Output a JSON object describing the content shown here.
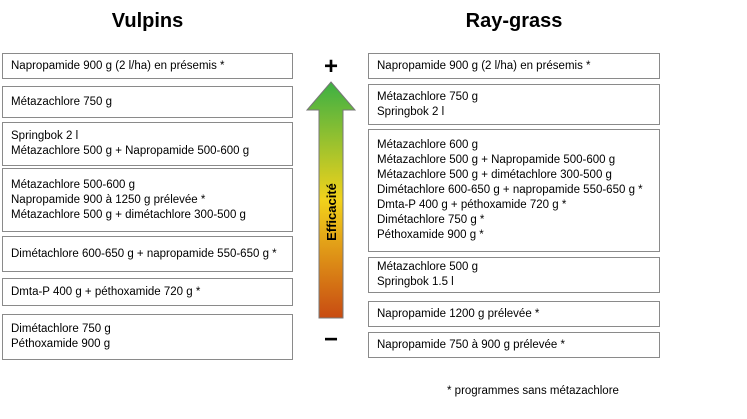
{
  "left": {
    "title": "Vulpins",
    "boxes": [
      [
        "Napropamide 900 g (2 l/ha) en présemis *"
      ],
      [
        "Métazachlore 750 g"
      ],
      [
        "Springbok 2 l",
        "Métazachlore 500 g + Napropamide 500-600 g"
      ],
      [
        "Métazachlore 500-600 g",
        "Napropamide 900 à 1250 g prélevée *",
        "Métazachlore 500 g + dimétachlore 300-500 g"
      ],
      [
        "Dimétachlore 600-650 g + napropamide 550-650 g *"
      ],
      [
        "Dmta-P 400 g + péthoxamide 720 g *"
      ],
      [
        "Dimétachlore 750 g",
        "Péthoxamide 900 g"
      ]
    ]
  },
  "right": {
    "title": "Ray-grass",
    "boxes": [
      [
        "Napropamide 900 g (2 l/ha) en présemis *"
      ],
      [
        "Métazachlore 750 g",
        "Springbok 2 l"
      ],
      [
        "Métazachlore 600 g",
        "Métazachlore 500 g + Napropamide 500-600 g",
        "Métazachlore 500 g + dimétachlore 300-500 g",
        "Dimétachlore 600-650 g + napropamide 550-650 g *",
        "Dmta-P 400 g + péthoxamide 720 g *",
        "Dimétachlore 750 g *",
        "Péthoxamide 900 g *"
      ],
      [
        "Métazachlore 500 g",
        "Springbok 1.5 l"
      ],
      [
        "Napropamide 1200 g prélevée *"
      ],
      [
        "Napropamide 750 à 900 g prélevée *"
      ]
    ]
  },
  "scale": {
    "label": "Efficacité",
    "plus": "+",
    "minus": "−",
    "colors": {
      "top": "#3cb043",
      "middle": "#f2d21b",
      "bottom": "#c84b12"
    }
  },
  "footnote": "*  programmes sans métazachlore"
}
